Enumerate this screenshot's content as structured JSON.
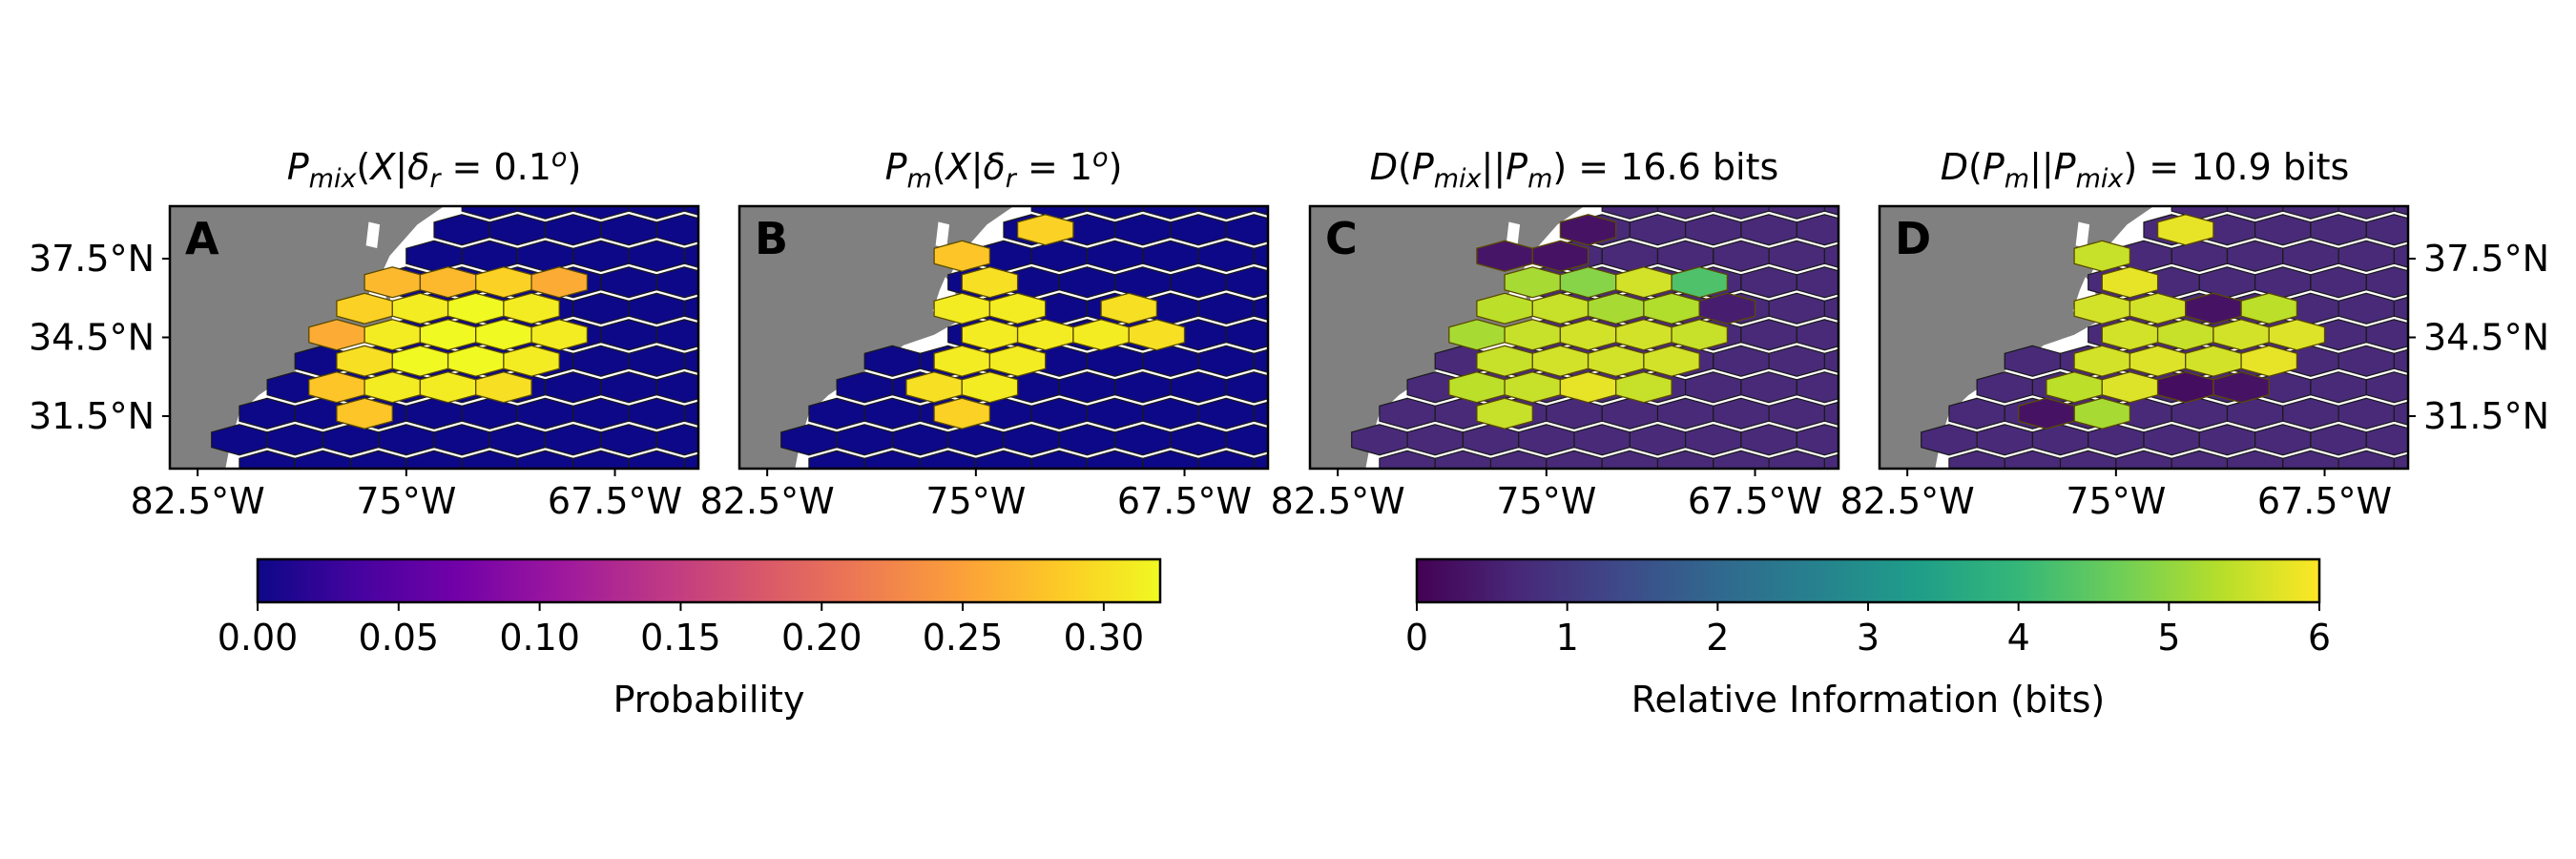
{
  "figure": {
    "panels": [
      {
        "letter": "A",
        "title": "P_mix(X|δr = 0.1°)",
        "colormap": "plasma"
      },
      {
        "letter": "B",
        "title": "P_m(X|δr = 1°)",
        "colormap": "plasma"
      },
      {
        "letter": "C",
        "title": "D(P_mix||P_m) = 16.6 bits",
        "colormap": "viridis"
      },
      {
        "letter": "D",
        "title": "D(P_m||P_mix) = 10.9 bits",
        "colormap": "viridis"
      }
    ],
    "colorbars": [
      {
        "label": "Probability",
        "ticks": [
          "0.00",
          "0.05",
          "0.10",
          "0.15",
          "0.20",
          "0.25",
          "0.30"
        ],
        "range": [
          0,
          0.32
        ],
        "colormap": "plasma"
      },
      {
        "label": "Relative Information (bits)",
        "ticks": [
          "0",
          "1",
          "2",
          "3",
          "4",
          "5",
          "6"
        ],
        "range": [
          0,
          6
        ],
        "colormap": "viridis"
      }
    ]
  },
  "chart_data": [
    {
      "type": "heatmap",
      "title": "P_mix(X|δr = 0.1°)",
      "panel_letter": "A",
      "xlabel": "",
      "ylabel": "",
      "xticks": [
        "82.5°W",
        "75°W",
        "67.5°W"
      ],
      "yticks": [
        "37.5°N",
        "34.5°N",
        "31.5°N"
      ],
      "xlim": [
        -83.5,
        -64.5
      ],
      "ylim": [
        29.5,
        39.5
      ],
      "colorbar": "Probability",
      "background_value": 0.0,
      "cells": [
        {
          "lon": -75.5,
          "lat": 36.6,
          "value": 0.27
        },
        {
          "lon": -73.5,
          "lat": 36.6,
          "value": 0.27
        },
        {
          "lon": -71.5,
          "lat": 36.6,
          "value": 0.29
        },
        {
          "lon": -69.5,
          "lat": 36.6,
          "value": 0.26
        },
        {
          "lon": -76.5,
          "lat": 35.6,
          "value": 0.29
        },
        {
          "lon": -74.5,
          "lat": 35.6,
          "value": 0.31
        },
        {
          "lon": -72.5,
          "lat": 35.6,
          "value": 0.32
        },
        {
          "lon": -70.5,
          "lat": 35.6,
          "value": 0.31
        },
        {
          "lon": -77.5,
          "lat": 34.6,
          "value": 0.26
        },
        {
          "lon": -75.5,
          "lat": 34.6,
          "value": 0.31
        },
        {
          "lon": -73.5,
          "lat": 34.6,
          "value": 0.32
        },
        {
          "lon": -71.5,
          "lat": 34.6,
          "value": 0.32
        },
        {
          "lon": -69.5,
          "lat": 34.6,
          "value": 0.31
        },
        {
          "lon": -76.5,
          "lat": 33.6,
          "value": 0.3
        },
        {
          "lon": -74.5,
          "lat": 33.6,
          "value": 0.32
        },
        {
          "lon": -72.5,
          "lat": 33.6,
          "value": 0.32
        },
        {
          "lon": -70.5,
          "lat": 33.6,
          "value": 0.31
        },
        {
          "lon": -77.5,
          "lat": 32.6,
          "value": 0.28
        },
        {
          "lon": -75.5,
          "lat": 32.6,
          "value": 0.31
        },
        {
          "lon": -73.5,
          "lat": 32.6,
          "value": 0.31
        },
        {
          "lon": -71.5,
          "lat": 32.6,
          "value": 0.3
        },
        {
          "lon": -76.5,
          "lat": 31.6,
          "value": 0.28
        }
      ]
    },
    {
      "type": "heatmap",
      "title": "P_m(X|δr = 1°)",
      "panel_letter": "B",
      "xlabel": "",
      "ylabel": "",
      "xticks": [
        "82.5°W",
        "75°W",
        "67.5°W"
      ],
      "yticks": [],
      "xlim": [
        -83.5,
        -64.5
      ],
      "ylim": [
        29.5,
        39.5
      ],
      "colorbar": "Probability",
      "background_value": 0.0,
      "cells": [
        {
          "lon": -72.5,
          "lat": 38.6,
          "value": 0.29
        },
        {
          "lon": -75.5,
          "lat": 37.6,
          "value": 0.28
        },
        {
          "lon": -74.5,
          "lat": 36.6,
          "value": 0.3
        },
        {
          "lon": -75.5,
          "lat": 35.6,
          "value": 0.31
        },
        {
          "lon": -73.5,
          "lat": 35.6,
          "value": 0.31
        },
        {
          "lon": -69.5,
          "lat": 35.6,
          "value": 0.3
        },
        {
          "lon": -74.5,
          "lat": 34.6,
          "value": 0.31
        },
        {
          "lon": -72.5,
          "lat": 34.6,
          "value": 0.31
        },
        {
          "lon": -70.5,
          "lat": 34.6,
          "value": 0.31
        },
        {
          "lon": -68.5,
          "lat": 34.6,
          "value": 0.3
        },
        {
          "lon": -75.5,
          "lat": 33.6,
          "value": 0.31
        },
        {
          "lon": -73.5,
          "lat": 33.6,
          "value": 0.31
        },
        {
          "lon": -76.5,
          "lat": 32.6,
          "value": 0.3
        },
        {
          "lon": -74.5,
          "lat": 32.6,
          "value": 0.31
        },
        {
          "lon": -75.5,
          "lat": 31.6,
          "value": 0.29
        }
      ]
    },
    {
      "type": "heatmap",
      "title": "D(P_mix||P_m) = 16.6 bits",
      "panel_letter": "C",
      "xlabel": "",
      "ylabel": "",
      "xticks": [
        "82.5°W",
        "75°W",
        "67.5°W"
      ],
      "yticks": [],
      "xlim": [
        -83.5,
        -64.5
      ],
      "ylim": [
        29.5,
        39.5
      ],
      "colorbar": "Relative Information (bits)",
      "background_value": 0.7,
      "cells": [
        {
          "lon": -73.5,
          "lat": 38.6,
          "value": 0.3
        },
        {
          "lon": -76.5,
          "lat": 37.6,
          "value": 0.35
        },
        {
          "lon": -74.5,
          "lat": 37.6,
          "value": 0.3
        },
        {
          "lon": -75.5,
          "lat": 36.6,
          "value": 5.2
        },
        {
          "lon": -73.5,
          "lat": 36.6,
          "value": 4.9
        },
        {
          "lon": -71.5,
          "lat": 36.6,
          "value": 5.6
        },
        {
          "lon": -69.5,
          "lat": 36.6,
          "value": 4.3
        },
        {
          "lon": -76.5,
          "lat": 35.6,
          "value": 5.4
        },
        {
          "lon": -74.5,
          "lat": 35.6,
          "value": 5.5
        },
        {
          "lon": -72.5,
          "lat": 35.6,
          "value": 5.2
        },
        {
          "lon": -70.5,
          "lat": 35.6,
          "value": 5.3
        },
        {
          "lon": -68.5,
          "lat": 35.6,
          "value": 0.5
        },
        {
          "lon": -77.5,
          "lat": 34.6,
          "value": 5.2
        },
        {
          "lon": -75.5,
          "lat": 34.6,
          "value": 5.5
        },
        {
          "lon": -73.5,
          "lat": 34.6,
          "value": 5.6
        },
        {
          "lon": -71.5,
          "lat": 34.6,
          "value": 5.6
        },
        {
          "lon": -69.5,
          "lat": 34.6,
          "value": 5.5
        },
        {
          "lon": -76.5,
          "lat": 33.6,
          "value": 5.5
        },
        {
          "lon": -74.5,
          "lat": 33.6,
          "value": 5.6
        },
        {
          "lon": -72.5,
          "lat": 33.6,
          "value": 5.6
        },
        {
          "lon": -70.5,
          "lat": 33.6,
          "value": 5.6
        },
        {
          "lon": -77.5,
          "lat": 32.6,
          "value": 5.4
        },
        {
          "lon": -75.5,
          "lat": 32.6,
          "value": 5.5
        },
        {
          "lon": -73.5,
          "lat": 32.6,
          "value": 5.8
        },
        {
          "lon": -71.5,
          "lat": 32.6,
          "value": 5.5
        },
        {
          "lon": -76.5,
          "lat": 31.6,
          "value": 5.5
        }
      ]
    },
    {
      "type": "heatmap",
      "title": "D(P_m||P_mix) = 10.9 bits",
      "panel_letter": "D",
      "xlabel": "",
      "ylabel": "",
      "xticks": [
        "82.5°W",
        "75°W",
        "67.5°W"
      ],
      "yticks": [
        "37.5°N",
        "34.5°N",
        "31.5°N"
      ],
      "xlim": [
        -83.5,
        -64.5
      ],
      "ylim": [
        29.5,
        39.5
      ],
      "colorbar": "Relative Information (bits)",
      "background_value": 0.7,
      "cells": [
        {
          "lon": -72.5,
          "lat": 38.6,
          "value": 5.8
        },
        {
          "lon": -75.5,
          "lat": 37.6,
          "value": 5.5
        },
        {
          "lon": -74.5,
          "lat": 36.6,
          "value": 5.8
        },
        {
          "lon": -75.5,
          "lat": 35.6,
          "value": 5.6
        },
        {
          "lon": -73.5,
          "lat": 35.6,
          "value": 5.6
        },
        {
          "lon": -71.5,
          "lat": 35.6,
          "value": 0.3
        },
        {
          "lon": -69.5,
          "lat": 35.6,
          "value": 5.4
        },
        {
          "lon": -74.5,
          "lat": 34.6,
          "value": 5.6
        },
        {
          "lon": -72.5,
          "lat": 34.6,
          "value": 5.5
        },
        {
          "lon": -70.5,
          "lat": 34.6,
          "value": 5.6
        },
        {
          "lon": -68.5,
          "lat": 34.6,
          "value": 5.7
        },
        {
          "lon": -75.5,
          "lat": 33.6,
          "value": 5.6
        },
        {
          "lon": -73.5,
          "lat": 33.6,
          "value": 5.7
        },
        {
          "lon": -71.5,
          "lat": 33.6,
          "value": 5.6
        },
        {
          "lon": -69.5,
          "lat": 33.6,
          "value": 5.8
        },
        {
          "lon": -76.5,
          "lat": 32.6,
          "value": 5.4
        },
        {
          "lon": -74.5,
          "lat": 32.6,
          "value": 5.7
        },
        {
          "lon": -72.5,
          "lat": 32.6,
          "value": 0.2
        },
        {
          "lon": -70.5,
          "lat": 32.6,
          "value": 0.3
        },
        {
          "lon": -75.5,
          "lat": 31.6,
          "value": 5.2
        },
        {
          "lon": -77.5,
          "lat": 31.6,
          "value": 0.3
        }
      ]
    }
  ]
}
